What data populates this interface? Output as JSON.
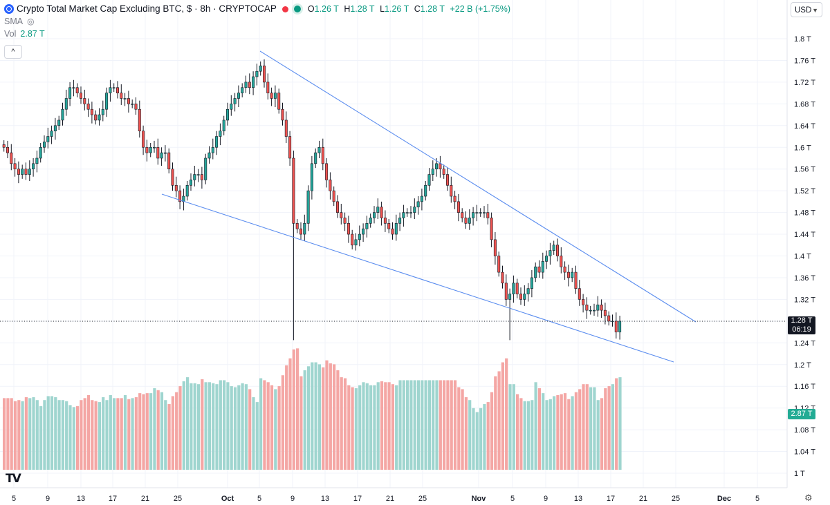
{
  "header": {
    "title": "Crypto Total Market Cap Excluding BTC, $ · 8h · CRYPTOCAP",
    "ohlc": {
      "o_label": "O",
      "o": "1.26 T",
      "h_label": "H",
      "h": "1.28 T",
      "l_label": "L",
      "l": "1.26 T",
      "c_label": "C",
      "c": "1.28 T"
    },
    "change": "+22 B (+1.75%)",
    "sma_label": "SMA",
    "vol_label": "Vol",
    "vol_value": "2.87 T",
    "collapse_icon": "^"
  },
  "currency_select": "USD",
  "price_tag": {
    "price": "1.28 T",
    "countdown": "06:19"
  },
  "volume_tag": "2.87 T",
  "logo_text": "TV",
  "colors": {
    "up": "#26a69a",
    "down": "#ef5350",
    "vol_up": "#9fd5cf",
    "vol_down": "#f4a6a4",
    "trendline": "#5b8def",
    "grid": "#f0f3fa"
  },
  "chart_data": {
    "type": "candlestick",
    "price_axis": {
      "min": 1.0,
      "max": 1.82,
      "ticks": [
        "1 T",
        "1.04 T",
        "1.08 T",
        "1.12 T",
        "1.16 T",
        "1.2 T",
        "1.24 T",
        "1.28 T",
        "1.32 T",
        "1.36 T",
        "1.4 T",
        "1.44 T",
        "1.48 T",
        "1.52 T",
        "1.56 T",
        "1.6 T",
        "1.64 T",
        "1.68 T",
        "1.72 T",
        "1.76 T",
        "1.8 T"
      ]
    },
    "time_axis": {
      "ticks": [
        "5",
        "9",
        "13",
        "17",
        "21",
        "25",
        "Oct",
        "5",
        "9",
        "13",
        "17",
        "21",
        "25",
        "Nov",
        "5",
        "9",
        "13",
        "17",
        "21",
        "25",
        "Dec",
        "5"
      ]
    },
    "closes": [
      1.6,
      1.59,
      1.57,
      1.56,
      1.55,
      1.56,
      1.55,
      1.56,
      1.57,
      1.58,
      1.6,
      1.61,
      1.62,
      1.63,
      1.64,
      1.65,
      1.67,
      1.69,
      1.71,
      1.71,
      1.7,
      1.69,
      1.68,
      1.67,
      1.66,
      1.65,
      1.66,
      1.67,
      1.7,
      1.71,
      1.71,
      1.7,
      1.69,
      1.69,
      1.68,
      1.68,
      1.67,
      1.63,
      1.6,
      1.59,
      1.6,
      1.6,
      1.58,
      1.59,
      1.59,
      1.56,
      1.53,
      1.52,
      1.5,
      1.51,
      1.53,
      1.54,
      1.55,
      1.55,
      1.54,
      1.58,
      1.59,
      1.6,
      1.62,
      1.63,
      1.65,
      1.67,
      1.68,
      1.69,
      1.7,
      1.71,
      1.72,
      1.71,
      1.73,
      1.74,
      1.75,
      1.72,
      1.7,
      1.69,
      1.7,
      1.67,
      1.65,
      1.62,
      1.58,
      1.46,
      1.45,
      1.44,
      1.46,
      1.52,
      1.57,
      1.59,
      1.6,
      1.57,
      1.54,
      1.52,
      1.5,
      1.48,
      1.47,
      1.46,
      1.44,
      1.42,
      1.43,
      1.44,
      1.45,
      1.46,
      1.47,
      1.48,
      1.49,
      1.47,
      1.46,
      1.45,
      1.44,
      1.46,
      1.47,
      1.48,
      1.48,
      1.48,
      1.49,
      1.5,
      1.51,
      1.53,
      1.55,
      1.56,
      1.57,
      1.56,
      1.55,
      1.53,
      1.51,
      1.5,
      1.48,
      1.47,
      1.46,
      1.47,
      1.48,
      1.48,
      1.48,
      1.48,
      1.47,
      1.43,
      1.4,
      1.37,
      1.35,
      1.32,
      1.33,
      1.35,
      1.33,
      1.32,
      1.33,
      1.34,
      1.36,
      1.38,
      1.37,
      1.39,
      1.4,
      1.41,
      1.42,
      1.4,
      1.38,
      1.37,
      1.36,
      1.37,
      1.34,
      1.32,
      1.31,
      1.3,
      1.3,
      1.3,
      1.31,
      1.3,
      1.29,
      1.28,
      1.28,
      1.26,
      1.28
    ],
    "volumes": [
      0.72,
      0.72,
      0.72,
      0.69,
      0.7,
      0.69,
      0.73,
      0.72,
      0.73,
      0.7,
      0.64,
      0.7,
      0.74,
      0.74,
      0.73,
      0.7,
      0.7,
      0.69,
      0.65,
      0.63,
      0.64,
      0.7,
      0.72,
      0.75,
      0.7,
      0.69,
      0.68,
      0.73,
      0.7,
      0.75,
      0.72,
      0.72,
      0.72,
      0.75,
      0.71,
      0.72,
      0.73,
      0.77,
      0.76,
      0.77,
      0.77,
      0.82,
      0.8,
      0.78,
      0.7,
      0.66,
      0.74,
      0.78,
      0.84,
      0.89,
      0.93,
      0.87,
      0.87,
      0.86,
      0.91,
      0.88,
      0.88,
      0.87,
      0.86,
      0.9,
      0.9,
      0.88,
      0.84,
      0.83,
      0.85,
      0.87,
      0.86,
      0.81,
      0.73,
      0.68,
      0.92,
      0.9,
      0.88,
      0.85,
      0.81,
      0.84,
      0.95,
      1.05,
      1.12,
      1.21,
      1.22,
      0.94,
      1.0,
      1.04,
      1.08,
      1.08,
      1.06,
      1.03,
      1.1,
      1.07,
      1.06,
      1.0,
      0.93,
      0.92,
      0.85,
      0.83,
      0.82,
      0.85,
      0.88,
      0.87,
      0.85,
      0.85,
      0.88,
      0.89,
      0.88,
      0.88,
      0.86,
      0.85,
      0.9,
      0.9,
      0.9,
      0.9,
      0.9,
      0.9,
      0.9,
      0.9,
      0.9,
      0.9,
      0.9,
      0.9,
      0.9,
      0.9,
      0.9,
      0.9,
      0.83,
      0.81,
      0.73,
      0.7,
      0.62,
      0.58,
      0.62,
      0.66,
      0.68,
      0.78,
      0.94,
      0.99,
      1.08,
      1.12,
      0.86,
      0.86,
      0.76,
      0.72,
      0.69,
      0.69,
      0.7,
      0.88,
      0.82,
      0.77,
      0.7,
      0.71,
      0.74,
      0.75,
      0.76,
      0.77,
      0.71,
      0.74,
      0.78,
      0.81,
      0.86,
      0.86,
      0.83,
      0.83,
      0.7,
      0.72,
      0.82,
      0.84,
      0.86,
      0.92,
      0.93
    ]
  }
}
